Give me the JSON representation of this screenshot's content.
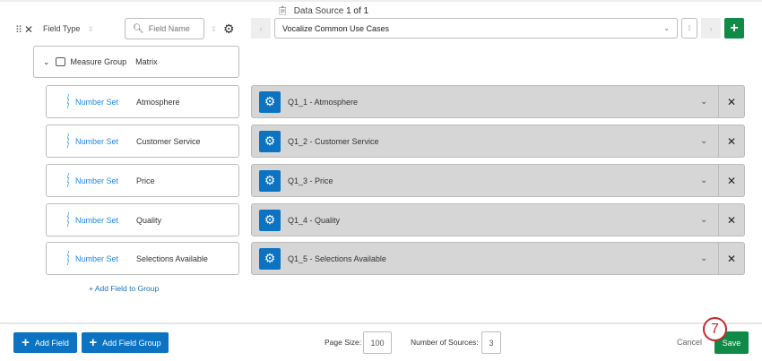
{
  "header": {
    "field_type_label": "Field Type",
    "search_placeholder": "Field Name",
    "data_source_prefix": "Data Source ",
    "data_source_count": "1 of 1",
    "source_selected": "Vocalize Common Use Cases"
  },
  "group": {
    "label": "Measure Group",
    "name": "Matrix"
  },
  "rows": [
    {
      "type": "Number Set",
      "field": "Atmosphere",
      "source": "Q1_1 - Atmosphere"
    },
    {
      "type": "Number Set",
      "field": "Customer Service",
      "source": "Q1_2 - Customer Service"
    },
    {
      "type": "Number Set",
      "field": "Price",
      "source": "Q1_3 - Price"
    },
    {
      "type": "Number Set",
      "field": "Quality",
      "source": "Q1_4 - Quality"
    },
    {
      "type": "Number Set",
      "field": "Selections Available",
      "source": "Q1_5 - Selections Available"
    }
  ],
  "add_field_to_group": "+ Add Field to Group",
  "footer": {
    "add_field": "Add Field",
    "add_field_group": "Add Field Group",
    "page_size_label": "Page Size:",
    "page_size": "100",
    "num_sources_label": "Number of Sources:",
    "num_sources": "3",
    "cancel": "Cancel",
    "save": "Save",
    "step_marker": "7"
  },
  "colors": {
    "primary": "#0b73c2",
    "success": "#0f8a47",
    "annotation": "#c62828"
  }
}
